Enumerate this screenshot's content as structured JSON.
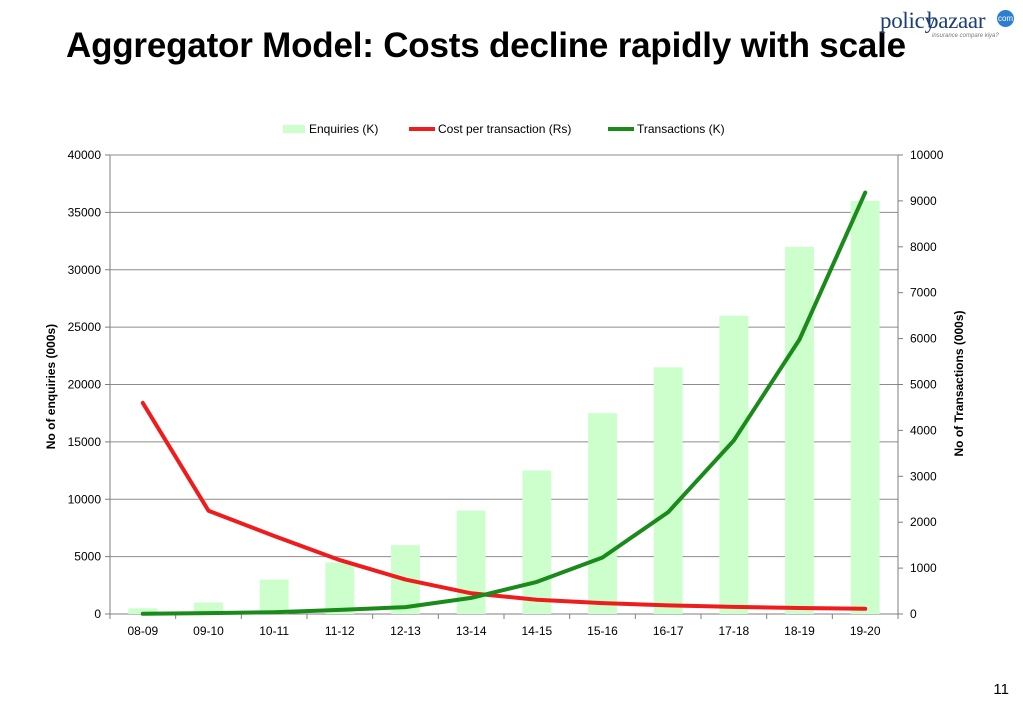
{
  "slide": {
    "title": "Aggregator Model: Costs decline rapidly with scale",
    "page_number": "11"
  },
  "logo": {
    "policy": "policy",
    "bazaar": "bazaar",
    "com": "com",
    "tagline": "insurance compare kiya?"
  },
  "chart_data": {
    "type": "bar",
    "categories": [
      "08-09",
      "09-10",
      "10-11",
      "11-12",
      "12-13",
      "13-14",
      "14-15",
      "15-16",
      "16-17",
      "17-18",
      "18-19",
      "19-20"
    ],
    "series": [
      {
        "name": "Enquiries (K)",
        "type": "bar",
        "axis": "left",
        "color": "#ccffcc",
        "values": [
          500,
          1000,
          3000,
          4500,
          6000,
          9000,
          12500,
          17500,
          21500,
          26000,
          32000,
          36000
        ]
      },
      {
        "name": "Cost per transaction (Rs)",
        "type": "line",
        "axis": "left",
        "color": "#ee1c1c",
        "values": [
          18400,
          9000,
          6800,
          4700,
          3000,
          1800,
          1250,
          950,
          750,
          620,
          520,
          450
        ]
      },
      {
        "name": "Transactions (K)",
        "type": "line",
        "axis": "right",
        "color": "#1a8a1a",
        "values": [
          5,
          20,
          40,
          90,
          150,
          350,
          700,
          1230,
          2220,
          3780,
          5980,
          9180
        ]
      }
    ],
    "ylabel": "No of enquiries (000s)",
    "y2label": "No of Transactions (000s)",
    "ylim": [
      0,
      40000
    ],
    "y2lim": [
      0,
      10000
    ],
    "yticks": [
      0,
      5000,
      10000,
      15000,
      20000,
      25000,
      30000,
      35000,
      40000
    ],
    "y2ticks": [
      0,
      1000,
      2000,
      3000,
      4000,
      5000,
      6000,
      7000,
      8000,
      9000,
      10000
    ],
    "grid": true,
    "legend": "top"
  }
}
